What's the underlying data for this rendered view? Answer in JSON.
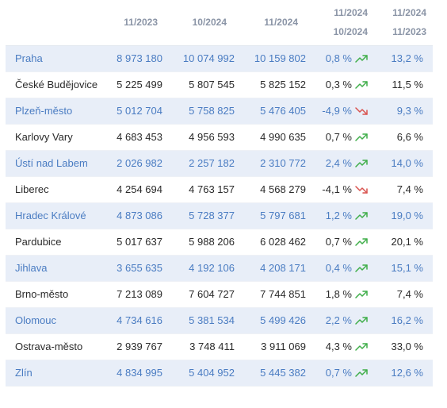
{
  "headers": {
    "col1": "11/2023",
    "col2": "10/2024",
    "col3": "11/2024",
    "col4_top": "11/2024",
    "col4_bottom": "10/2024",
    "col5_top": "11/2024",
    "col5_bottom": "11/2023"
  },
  "colors": {
    "up": "#3fae49",
    "down": "#d9534f",
    "accent": "#4a7cc2"
  },
  "rows": [
    {
      "name": "Praha",
      "v1": "8 973 180",
      "v2": "10 074 992",
      "v3": "10 159 802",
      "change": "0,8 %",
      "trend": "up",
      "yoy": "13,2 %"
    },
    {
      "name": "České Budějovice",
      "v1": "5 225 499",
      "v2": "5 807 545",
      "v3": "5 825 152",
      "change": "0,3 %",
      "trend": "up",
      "yoy": "11,5 %"
    },
    {
      "name": "Plzeň-město",
      "v1": "5 012 704",
      "v2": "5 758 825",
      "v3": "5 476 405",
      "change": "-4,9 %",
      "trend": "down",
      "yoy": "9,3 %"
    },
    {
      "name": "Karlovy Vary",
      "v1": "4 683 453",
      "v2": "4 956 593",
      "v3": "4 990 635",
      "change": "0,7 %",
      "trend": "up",
      "yoy": "6,6 %"
    },
    {
      "name": "Ústí nad Labem",
      "v1": "2 026 982",
      "v2": "2 257 182",
      "v3": "2 310 772",
      "change": "2,4 %",
      "trend": "up",
      "yoy": "14,0 %"
    },
    {
      "name": "Liberec",
      "v1": "4 254 694",
      "v2": "4 763 157",
      "v3": "4 568 279",
      "change": "-4,1 %",
      "trend": "down",
      "yoy": "7,4 %"
    },
    {
      "name": "Hradec Králové",
      "v1": "4 873 086",
      "v2": "5 728 377",
      "v3": "5 797 681",
      "change": "1,2 %",
      "trend": "up",
      "yoy": "19,0 %"
    },
    {
      "name": "Pardubice",
      "v1": "5 017 637",
      "v2": "5 988 206",
      "v3": "6 028 462",
      "change": "0,7 %",
      "trend": "up",
      "yoy": "20,1 %"
    },
    {
      "name": "Jihlava",
      "v1": "3 655 635",
      "v2": "4 192 106",
      "v3": "4 208 171",
      "change": "0,4 %",
      "trend": "up",
      "yoy": "15,1 %"
    },
    {
      "name": "Brno-město",
      "v1": "7 213 089",
      "v2": "7 604 727",
      "v3": "7 744 851",
      "change": "1,8 %",
      "trend": "up",
      "yoy": "7,4 %"
    },
    {
      "name": "Olomouc",
      "v1": "4 734 616",
      "v2": "5 381 534",
      "v3": "5 499 426",
      "change": "2,2 %",
      "trend": "up",
      "yoy": "16,2 %"
    },
    {
      "name": "Ostrava-město",
      "v1": "2 939 767",
      "v2": "3 748 411",
      "v3": "3 911 069",
      "change": "4,3 %",
      "trend": "up",
      "yoy": "33,0 %"
    },
    {
      "name": "Zlín",
      "v1": "4 834 995",
      "v2": "5 404 952",
      "v3": "5 445 382",
      "change": "0,7 %",
      "trend": "up",
      "yoy": "12,6 %"
    }
  ]
}
